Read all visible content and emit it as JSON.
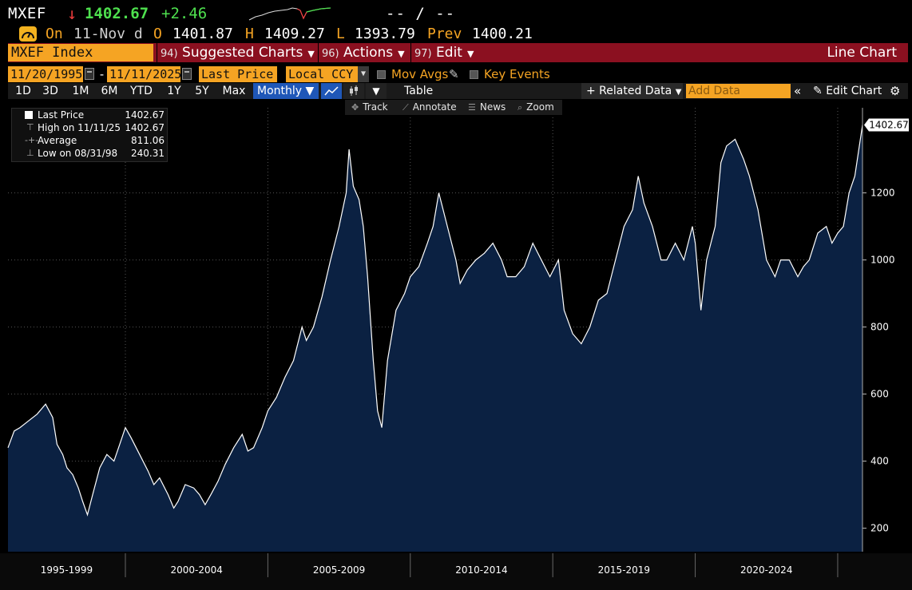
{
  "header": {
    "ticker": "MXEF",
    "direction_arrow": "↓",
    "last_price": "1402.67",
    "change": "+2.46",
    "range_text": "-- / --",
    "on_label": "On",
    "date": "11-Nov d",
    "open_label": "O",
    "open": "1401.87",
    "high_label": "H",
    "high": "1409.27",
    "low_label": "L",
    "low": "1393.79",
    "prev_label": "Prev",
    "prev": "1400.21"
  },
  "menubar": {
    "index_name": "MXEF Index",
    "suggested_num": "94)",
    "suggested_label": "Suggested Charts",
    "actions_num": "96)",
    "actions_label": "Actions",
    "edit_num": "97)",
    "edit_label": "Edit",
    "chart_type_label": "Line Chart"
  },
  "controls": {
    "start_date": "11/20/1995",
    "end_date": "11/11/2025",
    "date_sep": "-",
    "field": "Last Price",
    "currency": "Local CCY",
    "mov_avgs_label": "Mov Avgs",
    "key_events_label": "Key Events"
  },
  "periods": {
    "tabs": [
      "1D",
      "3D",
      "1M",
      "6M",
      "YTD",
      "1Y",
      "5Y",
      "Max"
    ],
    "frequency": "Monthly",
    "table_label": "Table",
    "related_label": "+ Related Data",
    "add_data_placeholder": "Add Data",
    "edit_chart_label": "Edit Chart"
  },
  "tools": {
    "track": "Track",
    "annotate": "Annotate",
    "news": "News",
    "zoom": "Zoom"
  },
  "legend": {
    "rows": [
      {
        "label": "Last Price",
        "value": "1402.67"
      },
      {
        "label": "High on 11/11/25",
        "value": "1402.67"
      },
      {
        "label": "Average",
        "value": "811.06"
      },
      {
        "label": "Low on 08/31/98",
        "value": "240.31"
      }
    ]
  },
  "colors": {
    "line": "#ffffff",
    "area_fill": "#0b2142",
    "grid": "#555555",
    "up": "#4ee04e",
    "down": "#f03c3c",
    "amber": "#f5a423"
  },
  "chart_data": {
    "type": "area",
    "title": "",
    "xlabel": "",
    "ylabel": "",
    "ylim": [
      130,
      1430
    ],
    "xlim": [
      1995.88,
      2025.87
    ],
    "y_ticks": [
      200,
      400,
      600,
      800,
      1000,
      1200
    ],
    "x_period_labels": [
      "1995-1999",
      "2000-2004",
      "2005-2009",
      "2010-2014",
      "2015-2019",
      "2020-2024"
    ],
    "x_period_starts": [
      1995.88,
      2000.0,
      2005.0,
      2010.0,
      2015.0,
      2020.0,
      2025.0
    ],
    "last_value_label": "1402.67",
    "grid": true,
    "series": [
      {
        "x": [
          1995.88,
          1996.1,
          1996.3,
          1996.6,
          1996.9,
          1997.2,
          1997.45,
          1997.6,
          1997.8,
          1997.95,
          1998.15,
          1998.35,
          1998.5,
          1998.67,
          1998.85,
          1999.1,
          1999.35,
          1999.6,
          1999.8,
          2000.0,
          2000.2,
          2000.5,
          2000.8,
          2001.0,
          2001.2,
          2001.5,
          2001.7,
          2001.85,
          2002.1,
          2002.4,
          2002.6,
          2002.8,
          2003.0,
          2003.25,
          2003.5,
          2003.8,
          2004.1,
          2004.3,
          2004.5,
          2004.8,
          2005.0,
          2005.3,
          2005.6,
          2005.9,
          2006.2,
          2006.35,
          2006.6,
          2006.9,
          2007.2,
          2007.5,
          2007.75,
          2007.85,
          2008.0,
          2008.2,
          2008.35,
          2008.5,
          2008.7,
          2008.85,
          2009.0,
          2009.2,
          2009.5,
          2009.8,
          2010.0,
          2010.3,
          2010.6,
          2010.8,
          2011.0,
          2011.3,
          2011.6,
          2011.75,
          2012.0,
          2012.3,
          2012.6,
          2012.9,
          2013.2,
          2013.4,
          2013.7,
          2014.0,
          2014.3,
          2014.6,
          2014.9,
          2015.2,
          2015.4,
          2015.7,
          2016.0,
          2016.3,
          2016.6,
          2016.9,
          2017.2,
          2017.5,
          2017.8,
          2018.0,
          2018.2,
          2018.5,
          2018.8,
          2019.0,
          2019.3,
          2019.6,
          2019.9,
          2020.0,
          2020.2,
          2020.4,
          2020.7,
          2020.9,
          2021.1,
          2021.4,
          2021.7,
          2021.9,
          2022.2,
          2022.5,
          2022.8,
          2023.0,
          2023.3,
          2023.6,
          2023.8,
          2024.0,
          2024.3,
          2024.6,
          2024.8,
          2025.0,
          2025.2,
          2025.4,
          2025.6,
          2025.87
        ],
        "y": [
          440,
          490,
          500,
          520,
          540,
          570,
          530,
          450,
          420,
          380,
          360,
          320,
          280,
          240,
          300,
          380,
          420,
          400,
          450,
          500,
          470,
          420,
          370,
          330,
          350,
          300,
          260,
          280,
          330,
          320,
          300,
          270,
          300,
          340,
          390,
          440,
          480,
          430,
          440,
          500,
          550,
          590,
          650,
          700,
          800,
          760,
          800,
          890,
          1000,
          1100,
          1200,
          1330,
          1220,
          1180,
          1100,
          950,
          700,
          550,
          500,
          700,
          850,
          900,
          950,
          980,
          1050,
          1100,
          1200,
          1100,
          1000,
          930,
          970,
          1000,
          1020,
          1050,
          1000,
          950,
          950,
          980,
          1050,
          1000,
          950,
          1000,
          850,
          780,
          750,
          800,
          880,
          900,
          1000,
          1100,
          1150,
          1250,
          1170,
          1100,
          1000,
          1000,
          1050,
          1000,
          1100,
          1050,
          850,
          1000,
          1100,
          1290,
          1340,
          1360,
          1300,
          1250,
          1150,
          1000,
          950,
          1000,
          1000,
          950,
          980,
          1000,
          1080,
          1100,
          1050,
          1080,
          1100,
          1200,
          1250,
          1402.67
        ]
      }
    ]
  }
}
